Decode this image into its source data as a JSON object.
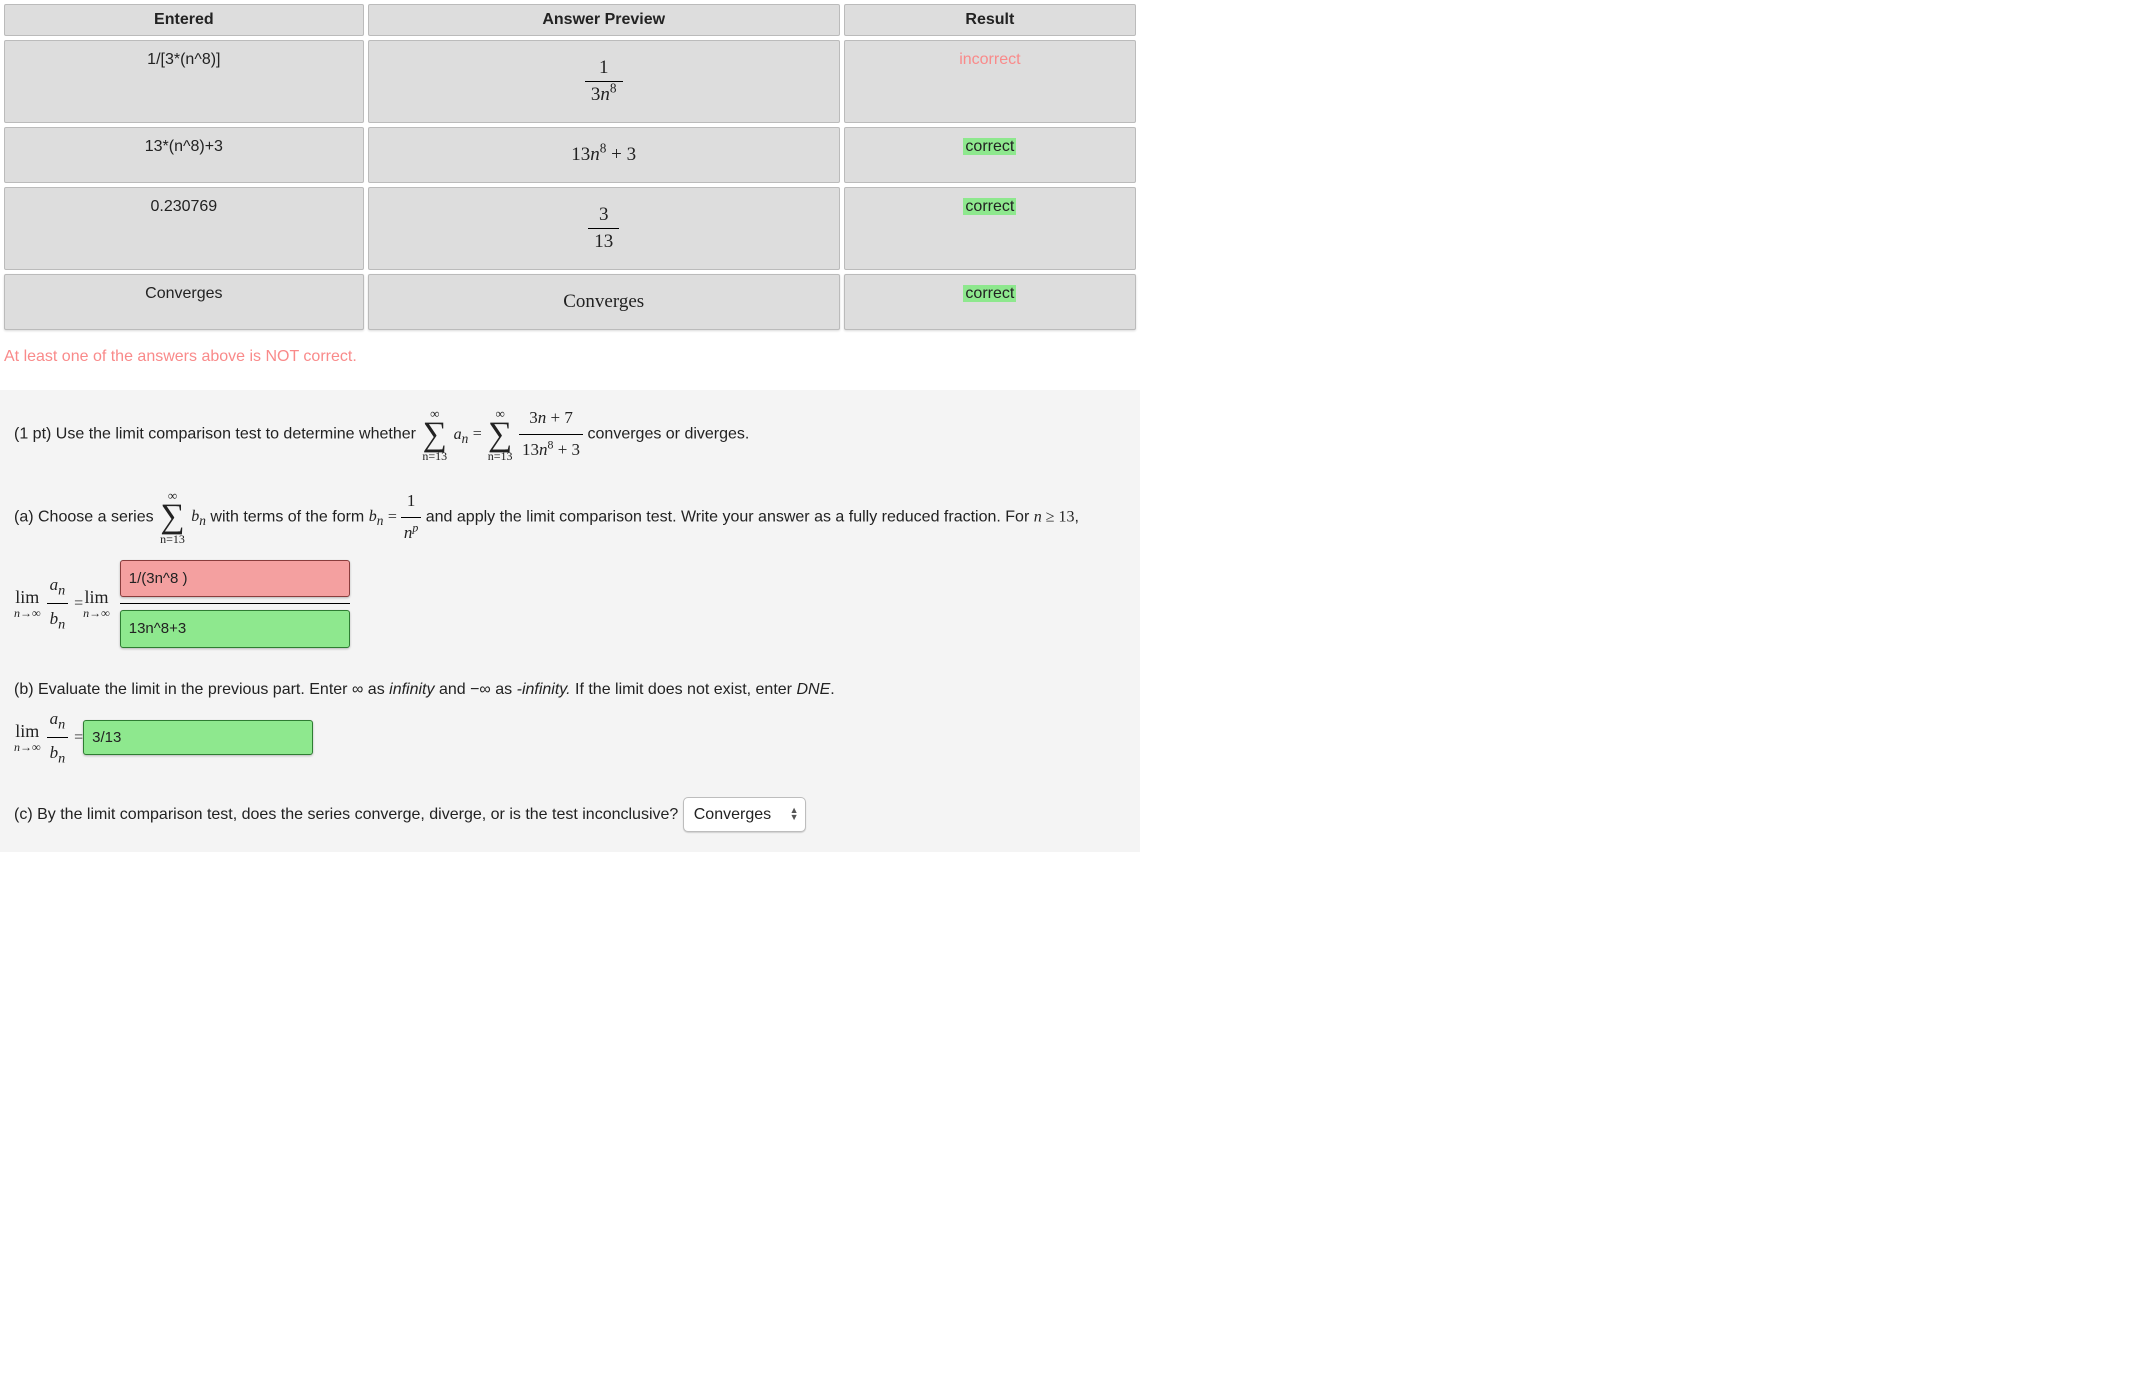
{
  "table": {
    "headers": {
      "entered": "Entered",
      "preview": "Answer Preview",
      "result": "Result"
    },
    "rows": [
      {
        "entered": "1/[3*(n^8)]",
        "preview": {
          "type": "frac",
          "num": "1",
          "den_html": "3<span class='ital'>n</span><sup>8</sup>"
        },
        "result": "incorrect",
        "correct": false
      },
      {
        "entered": "13*(n^8)+3",
        "preview": {
          "type": "text",
          "html": "13<span class='ital'>n</span><sup>8</sup> + 3"
        },
        "result": "correct",
        "correct": true
      },
      {
        "entered": "0.230769",
        "preview": {
          "type": "frac",
          "num": "3",
          "den_html": "13"
        },
        "result": "correct",
        "correct": true
      },
      {
        "entered": "Converges",
        "preview": {
          "type": "text",
          "html": "Converges"
        },
        "result": "correct",
        "correct": true
      }
    ]
  },
  "warning": "At least one of the answers above is NOT correct.",
  "problem": {
    "intro_before": "(1 pt) Use the limit comparison test to determine whether ",
    "intro_after": " converges or diverges.",
    "main_index": "n=13",
    "an_html": "<span class='ital'>a<sub>n</sub></span>",
    "equals": " = ",
    "series_frac": {
      "num_html": "3<span class='ital'>n</span> + 7",
      "den_html": "13<span class='ital'>n</span><sup>8</sup> + 3"
    },
    "part_a_before": "(a) Choose a series ",
    "part_a_mid": " with terms of the form ",
    "bn_html": "<span class='ital'>b<sub>n</sub></span>",
    "bn_form": {
      "num_html": "1",
      "den_html": "<span class='ital'>n<sup>p</sup></span>"
    },
    "part_a_after": " and apply the limit comparison test. Write your answer as a fully reduced fraction. For ",
    "n_ge": "<span class='ital'>n</span> ≥ 13",
    "part_a_end": ",",
    "lim_text": "lim",
    "lim_sub": "n→∞",
    "ratio": {
      "num_html": "<span class='ital'>a<sub>n</sub></span>",
      "den_html": "<span class='ital'>b<sub>n</sub></span>"
    },
    "answers_a": {
      "numerator": "1/(3n^8 )",
      "numerator_correct": false,
      "denominator": "13n^8+3",
      "denominator_correct": true
    },
    "part_b": "(b) Evaluate the limit in the previous part. Enter ∞ as ",
    "infinity_word": "infinity",
    "part_b_mid": " and −∞ as ",
    "neg_infinity_word": "-infinity.",
    "part_b_after": " If the limit does not exist, enter ",
    "dne": "DNE",
    "answer_b": {
      "value": "3/13",
      "correct": true
    },
    "part_c": "(c) By the limit comparison test, does the series converge, diverge, or is the test inconclusive?",
    "select_value": "Converges"
  },
  "colors": {
    "cell_bg": "#dddddd",
    "incorrect_text": "#f98a8a",
    "correct_bg": "#8ee88e",
    "wrong_bg": "#f4a0a0",
    "problem_bg": "#f4f4f4"
  }
}
